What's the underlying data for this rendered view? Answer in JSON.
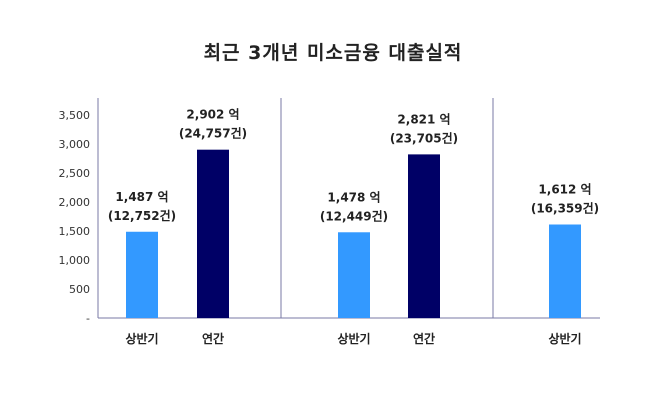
{
  "chart_data": {
    "type": "bar",
    "title": "최근 3개년 미소금융 대출실적",
    "xlabel": "",
    "ylabel": "",
    "ylim": [
      0,
      3500
    ],
    "yticks": [
      "-",
      "500",
      "1,000",
      "1,500",
      "2,000",
      "2,500",
      "3,000",
      "3,500"
    ],
    "ytick_values": [
      0,
      500,
      1000,
      1500,
      2000,
      2500,
      3000,
      3500
    ],
    "grid": false,
    "legend": "none",
    "bars": [
      {
        "category": "상반기",
        "value": 1487,
        "label_amount": "1,487 억",
        "label_count": "(12,752건)",
        "color": "#3399ff"
      },
      {
        "category": "연간",
        "value": 2902,
        "label_amount": "2,902 억",
        "label_count": "(24,757건)",
        "color": "#000066"
      },
      {
        "category": "상반기",
        "value": 1478,
        "label_amount": "1,478 억",
        "label_count": "(12,449건)",
        "color": "#3399ff"
      },
      {
        "category": "연간",
        "value": 2821,
        "label_amount": "2,821 억",
        "label_count": "(23,705건)",
        "color": "#000066"
      },
      {
        "category": "상반기",
        "value": 1612,
        "label_amount": "1,612 억",
        "label_count": "(16,359건)",
        "color": "#3399ff"
      }
    ],
    "axis_color": "#7a7aa6"
  }
}
